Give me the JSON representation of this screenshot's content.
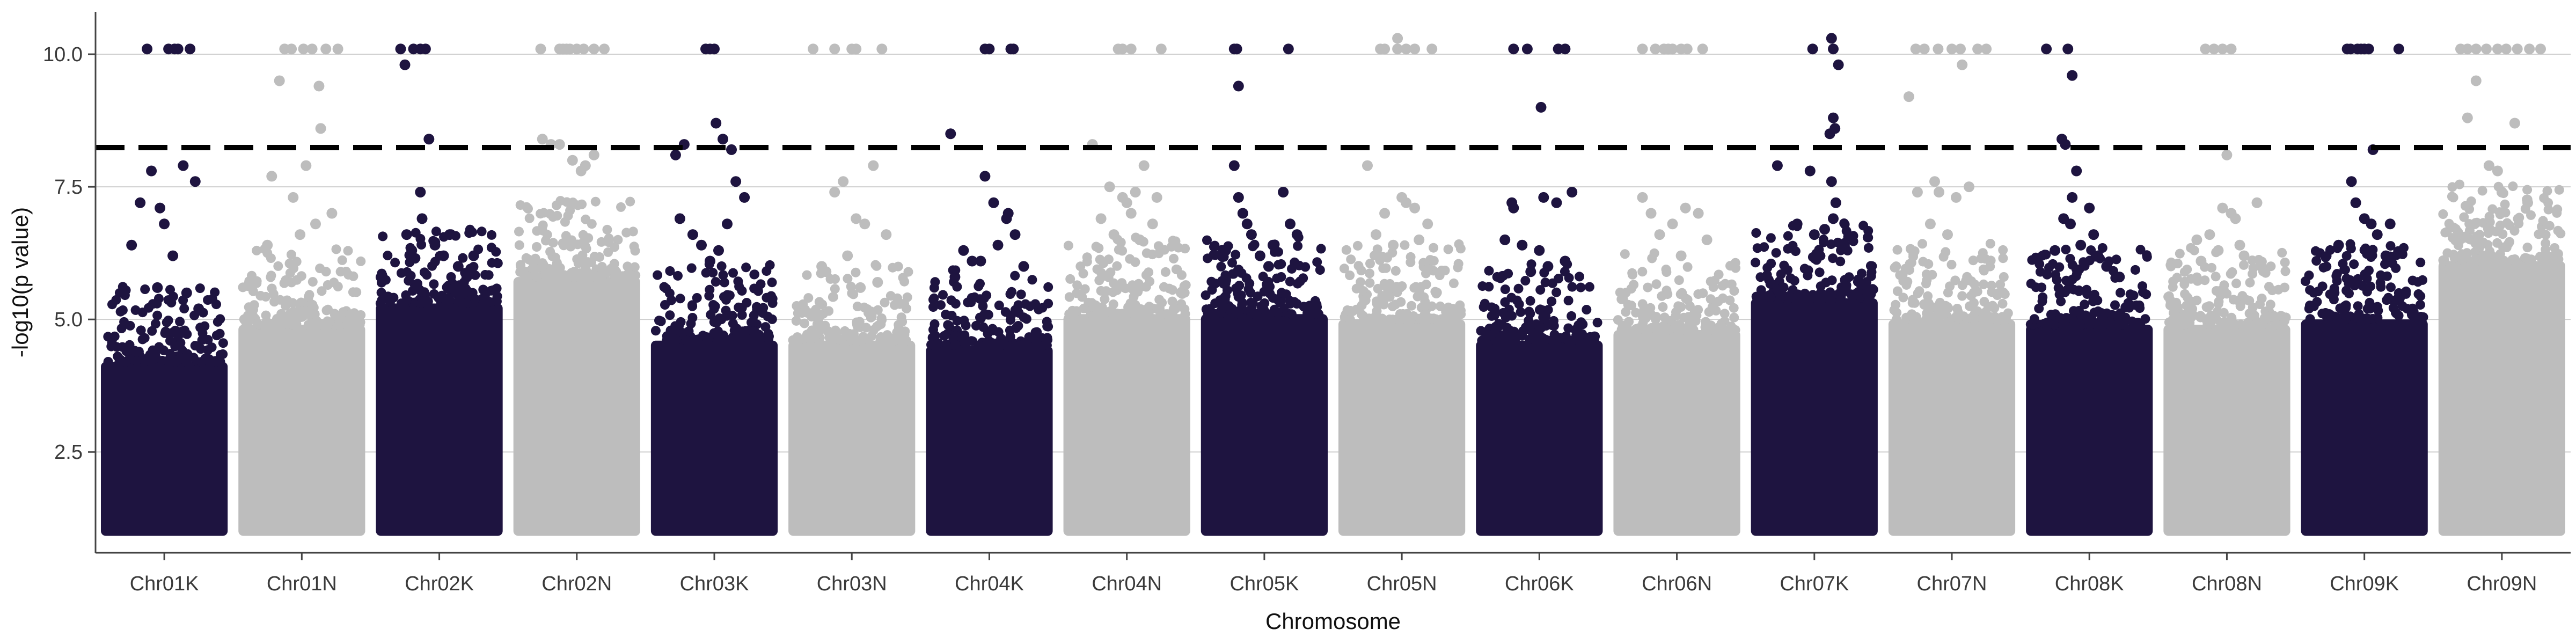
{
  "chart_data": {
    "type": "scatter",
    "title": "",
    "xlabel": "Chromosome",
    "ylabel": "-log10(p value)",
    "ylim": [
      0.6,
      10.8
    ],
    "y_ticks": [
      2.5,
      5.0,
      7.5,
      10.0
    ],
    "y_tick_labels": [
      "2.5",
      "5.0",
      "7.5",
      "10.0"
    ],
    "grid": "horizontal-major",
    "legend": "none",
    "threshold": 8.24,
    "background_floor": 1.0,
    "colors": {
      "dark": "#1e1440",
      "light": "#bdbdbd",
      "threshold": "#000000",
      "grid": "#cfcfcf",
      "axis": "#444444"
    },
    "chromosomes": [
      {
        "name": "Chr01K",
        "color": "dark",
        "dense_top": 4.2,
        "points": [
          [
            0.22,
            7.2
          ],
          [
            0.35,
            7.8
          ],
          [
            0.12,
            6.4
          ],
          [
            0.5,
            6.8
          ],
          [
            0.6,
            6.2
          ],
          [
            0.72,
            7.9
          ],
          [
            0.86,
            7.6
          ],
          [
            0.42,
            5.6
          ],
          [
            0.3,
            10.1
          ],
          [
            0.55,
            10.1
          ],
          [
            0.62,
            10.1
          ],
          [
            0.66,
            10.1
          ],
          [
            0.8,
            10.1
          ],
          [
            0.45,
            7.1
          ],
          [
            0.9,
            5.2
          ],
          [
            0.76,
            5.5
          ]
        ]
      },
      {
        "name": "Chr01N",
        "color": "light",
        "dense_top": 4.9,
        "points": [
          [
            0.15,
            7.7
          ],
          [
            0.3,
            10.1
          ],
          [
            0.38,
            10.1
          ],
          [
            0.52,
            10.1
          ],
          [
            0.62,
            10.1
          ],
          [
            0.78,
            10.1
          ],
          [
            0.92,
            10.1
          ],
          [
            0.24,
            9.5
          ],
          [
            0.7,
            9.4
          ],
          [
            0.72,
            8.6
          ],
          [
            0.4,
            7.3
          ],
          [
            0.55,
            7.9
          ],
          [
            0.85,
            7.0
          ],
          [
            0.1,
            6.4
          ],
          [
            0.48,
            6.6
          ],
          [
            0.66,
            6.8
          ]
        ]
      },
      {
        "name": "Chr02K",
        "color": "dark",
        "dense_top": 5.3,
        "points": [
          [
            0.05,
            10.1
          ],
          [
            0.1,
            9.8
          ],
          [
            0.2,
            10.1
          ],
          [
            0.28,
            10.1
          ],
          [
            0.34,
            10.1
          ],
          [
            0.38,
            8.4
          ],
          [
            0.28,
            7.4
          ],
          [
            0.12,
            6.6
          ],
          [
            0.3,
            6.9
          ],
          [
            0.45,
            6.4
          ],
          [
            0.55,
            6.2
          ],
          [
            0.62,
            6.6
          ],
          [
            0.72,
            6.0
          ],
          [
            0.82,
            5.8
          ],
          [
            0.9,
            6.2
          ],
          [
            0.18,
            6.3
          ]
        ]
      },
      {
        "name": "Chr02N",
        "color": "light",
        "dense_top": 5.8,
        "points": [
          [
            0.08,
            10.1
          ],
          [
            0.3,
            10.1
          ],
          [
            0.34,
            10.1
          ],
          [
            0.38,
            10.1
          ],
          [
            0.42,
            10.1
          ],
          [
            0.5,
            10.1
          ],
          [
            0.58,
            10.1
          ],
          [
            0.7,
            10.1
          ],
          [
            0.82,
            10.1
          ],
          [
            0.1,
            8.4
          ],
          [
            0.2,
            8.3
          ],
          [
            0.3,
            8.3
          ],
          [
            0.45,
            8.0
          ],
          [
            0.55,
            7.8
          ],
          [
            0.6,
            7.9
          ],
          [
            0.7,
            8.1
          ]
        ]
      },
      {
        "name": "Chr03K",
        "color": "dark",
        "dense_top": 4.6,
        "points": [
          [
            0.05,
            8.1
          ],
          [
            0.15,
            8.3
          ],
          [
            0.4,
            10.1
          ],
          [
            0.45,
            10.1
          ],
          [
            0.5,
            10.1
          ],
          [
            0.52,
            8.7
          ],
          [
            0.6,
            8.4
          ],
          [
            0.7,
            8.2
          ],
          [
            0.75,
            7.6
          ],
          [
            0.1,
            6.9
          ],
          [
            0.25,
            6.6
          ],
          [
            0.35,
            6.4
          ],
          [
            0.45,
            6.1
          ],
          [
            0.55,
            6.3
          ],
          [
            0.65,
            6.8
          ],
          [
            0.85,
            7.3
          ]
        ]
      },
      {
        "name": "Chr03N",
        "color": "light",
        "dense_top": 4.6,
        "points": [
          [
            0.05,
            10.1
          ],
          [
            0.3,
            10.1
          ],
          [
            0.5,
            10.1
          ],
          [
            0.55,
            10.1
          ],
          [
            0.85,
            10.1
          ],
          [
            0.3,
            7.4
          ],
          [
            0.4,
            7.6
          ],
          [
            0.55,
            6.9
          ],
          [
            0.65,
            6.8
          ],
          [
            0.75,
            7.9
          ],
          [
            0.9,
            6.6
          ],
          [
            0.15,
            6.0
          ],
          [
            0.2,
            5.9
          ],
          [
            0.45,
            6.2
          ],
          [
            0.6,
            5.6
          ],
          [
            0.8,
            5.7
          ]
        ]
      },
      {
        "name": "Chr04K",
        "color": "dark",
        "dense_top": 4.5,
        "points": [
          [
            0.05,
            8.5
          ],
          [
            0.45,
            10.1
          ],
          [
            0.5,
            10.1
          ],
          [
            0.75,
            10.1
          ],
          [
            0.78,
            10.1
          ],
          [
            0.45,
            7.7
          ],
          [
            0.55,
            7.2
          ],
          [
            0.7,
            6.9
          ],
          [
            0.72,
            7.0
          ],
          [
            0.2,
            6.3
          ],
          [
            0.3,
            6.1
          ],
          [
            0.6,
            6.4
          ],
          [
            0.8,
            6.6
          ],
          [
            0.9,
            6.0
          ],
          [
            0.4,
            6.1
          ],
          [
            0.1,
            5.8
          ]
        ]
      },
      {
        "name": "Chr04N",
        "color": "light",
        "dense_top": 5.1,
        "points": [
          [
            0.1,
            8.3
          ],
          [
            0.4,
            10.1
          ],
          [
            0.45,
            10.1
          ],
          [
            0.55,
            10.1
          ],
          [
            0.9,
            10.1
          ],
          [
            0.3,
            7.5
          ],
          [
            0.45,
            7.3
          ],
          [
            0.5,
            7.2
          ],
          [
            0.55,
            7.0
          ],
          [
            0.6,
            7.4
          ],
          [
            0.7,
            7.9
          ],
          [
            0.85,
            7.3
          ],
          [
            0.2,
            6.9
          ],
          [
            0.35,
            6.6
          ],
          [
            0.65,
            6.5
          ],
          [
            0.8,
            6.8
          ]
        ]
      },
      {
        "name": "Chr05K",
        "color": "dark",
        "dense_top": 5.1,
        "points": [
          [
            0.15,
            10.1
          ],
          [
            0.18,
            10.1
          ],
          [
            0.2,
            9.4
          ],
          [
            0.78,
            10.1
          ],
          [
            0.15,
            7.9
          ],
          [
            0.2,
            7.3
          ],
          [
            0.25,
            7.0
          ],
          [
            0.3,
            6.8
          ],
          [
            0.35,
            6.6
          ],
          [
            0.6,
            6.4
          ],
          [
            0.72,
            7.4
          ],
          [
            0.8,
            6.8
          ],
          [
            0.88,
            6.6
          ],
          [
            0.45,
            6.2
          ],
          [
            0.55,
            6.0
          ],
          [
            0.05,
            6.3
          ]
        ]
      },
      {
        "name": "Chr05N",
        "color": "light",
        "dense_top": 5.0,
        "points": [
          [
            0.25,
            10.1
          ],
          [
            0.3,
            10.1
          ],
          [
            0.45,
            10.3
          ],
          [
            0.45,
            10.1
          ],
          [
            0.55,
            10.1
          ],
          [
            0.65,
            10.1
          ],
          [
            0.85,
            10.1
          ],
          [
            0.1,
            7.9
          ],
          [
            0.3,
            7.0
          ],
          [
            0.5,
            7.3
          ],
          [
            0.55,
            7.2
          ],
          [
            0.65,
            7.1
          ],
          [
            0.8,
            6.8
          ],
          [
            0.4,
            6.4
          ],
          [
            0.2,
            6.6
          ],
          [
            0.7,
            6.5
          ]
        ]
      },
      {
        "name": "Chr06K",
        "color": "dark",
        "dense_top": 4.6,
        "points": [
          [
            0.2,
            10.1
          ],
          [
            0.36,
            10.1
          ],
          [
            0.52,
            9.0
          ],
          [
            0.72,
            10.1
          ],
          [
            0.8,
            10.1
          ],
          [
            0.18,
            7.2
          ],
          [
            0.2,
            7.1
          ],
          [
            0.55,
            7.3
          ],
          [
            0.7,
            7.2
          ],
          [
            0.88,
            7.4
          ],
          [
            0.3,
            6.4
          ],
          [
            0.5,
            6.3
          ],
          [
            0.6,
            6.0
          ],
          [
            0.1,
            6.5
          ],
          [
            0.4,
            5.9
          ],
          [
            0.8,
            6.1
          ]
        ]
      },
      {
        "name": "Chr06N",
        "color": "light",
        "dense_top": 4.8,
        "points": [
          [
            0.1,
            10.1
          ],
          [
            0.25,
            10.1
          ],
          [
            0.35,
            10.1
          ],
          [
            0.4,
            10.1
          ],
          [
            0.45,
            10.1
          ],
          [
            0.55,
            10.1
          ],
          [
            0.62,
            10.1
          ],
          [
            0.8,
            10.1
          ],
          [
            0.1,
            7.3
          ],
          [
            0.2,
            7.0
          ],
          [
            0.3,
            6.6
          ],
          [
            0.45,
            6.8
          ],
          [
            0.6,
            7.1
          ],
          [
            0.75,
            7.0
          ],
          [
            0.85,
            6.5
          ],
          [
            0.55,
            6.2
          ]
        ]
      },
      {
        "name": "Chr07K",
        "color": "dark",
        "dense_top": 5.4,
        "points": [
          [
            0.48,
            10.1
          ],
          [
            0.7,
            10.3
          ],
          [
            0.72,
            10.1
          ],
          [
            0.78,
            9.8
          ],
          [
            0.72,
            8.8
          ],
          [
            0.74,
            8.6
          ],
          [
            0.68,
            8.5
          ],
          [
            0.07,
            7.9
          ],
          [
            0.45,
            7.8
          ],
          [
            0.7,
            7.6
          ],
          [
            0.75,
            7.2
          ],
          [
            0.72,
            6.9
          ],
          [
            0.3,
            6.8
          ],
          [
            0.5,
            6.6
          ],
          [
            0.85,
            6.4
          ],
          [
            0.62,
            6.7
          ]
        ]
      },
      {
        "name": "Chr07N",
        "color": "light",
        "dense_top": 5.0,
        "points": [
          [
            0.08,
            10.1
          ],
          [
            0.18,
            10.1
          ],
          [
            0.34,
            10.1
          ],
          [
            0.5,
            10.1
          ],
          [
            0.6,
            10.1
          ],
          [
            0.62,
            9.8
          ],
          [
            0.8,
            10.1
          ],
          [
            0.9,
            10.1
          ],
          [
            0.0,
            9.2
          ],
          [
            0.1,
            7.4
          ],
          [
            0.3,
            7.6
          ],
          [
            0.35,
            7.4
          ],
          [
            0.55,
            7.3
          ],
          [
            0.7,
            7.5
          ],
          [
            0.25,
            6.8
          ],
          [
            0.45,
            6.6
          ]
        ]
      },
      {
        "name": "Chr08K",
        "color": "dark",
        "dense_top": 4.9,
        "points": [
          [
            0.0,
            10.1
          ],
          [
            0.25,
            10.1
          ],
          [
            0.3,
            9.6
          ],
          [
            0.18,
            8.4
          ],
          [
            0.22,
            8.3
          ],
          [
            0.3,
            7.3
          ],
          [
            0.35,
            7.8
          ],
          [
            0.28,
            6.8
          ],
          [
            0.5,
            7.1
          ],
          [
            0.2,
            6.9
          ],
          [
            0.1,
            6.3
          ],
          [
            0.4,
            6.4
          ],
          [
            0.6,
            6.2
          ],
          [
            0.7,
            6.0
          ],
          [
            0.85,
            5.8
          ],
          [
            0.55,
            6.6
          ]
        ]
      },
      {
        "name": "Chr08N",
        "color": "light",
        "dense_top": 4.9,
        "points": [
          [
            0.25,
            10.1
          ],
          [
            0.35,
            10.1
          ],
          [
            0.45,
            10.1
          ],
          [
            0.55,
            10.1
          ],
          [
            0.5,
            8.1
          ],
          [
            0.45,
            7.1
          ],
          [
            0.55,
            7.0
          ],
          [
            0.6,
            6.9
          ],
          [
            0.85,
            7.2
          ],
          [
            0.15,
            6.5
          ],
          [
            0.3,
            6.6
          ],
          [
            0.4,
            6.3
          ],
          [
            0.7,
            6.2
          ],
          [
            0.9,
            6.0
          ],
          [
            0.2,
            6.1
          ],
          [
            0.65,
            6.4
          ]
        ]
      },
      {
        "name": "Chr09K",
        "color": "dark",
        "dense_top": 5.0,
        "points": [
          [
            0.3,
            10.1
          ],
          [
            0.34,
            10.1
          ],
          [
            0.42,
            10.1
          ],
          [
            0.46,
            10.1
          ],
          [
            0.5,
            10.1
          ],
          [
            0.55,
            10.1
          ],
          [
            0.9,
            10.1
          ],
          [
            0.6,
            8.2
          ],
          [
            0.35,
            7.6
          ],
          [
            0.4,
            7.2
          ],
          [
            0.5,
            6.9
          ],
          [
            0.58,
            6.8
          ],
          [
            0.8,
            6.8
          ],
          [
            0.2,
            6.4
          ],
          [
            0.65,
            6.6
          ],
          [
            0.75,
            6.2
          ]
        ]
      },
      {
        "name": "Chr09N",
        "color": "light",
        "dense_top": 6.1,
        "points": [
          [
            0.02,
            10.1
          ],
          [
            0.1,
            10.1
          ],
          [
            0.2,
            10.1
          ],
          [
            0.32,
            10.1
          ],
          [
            0.45,
            10.1
          ],
          [
            0.55,
            10.1
          ],
          [
            0.68,
            10.1
          ],
          [
            0.82,
            10.1
          ],
          [
            0.95,
            10.1
          ],
          [
            0.2,
            9.5
          ],
          [
            0.1,
            8.8
          ],
          [
            0.65,
            8.7
          ],
          [
            0.35,
            7.9
          ],
          [
            0.45,
            7.8
          ],
          [
            0.5,
            7.4
          ],
          [
            0.8,
            7.2
          ]
        ]
      }
    ]
  }
}
